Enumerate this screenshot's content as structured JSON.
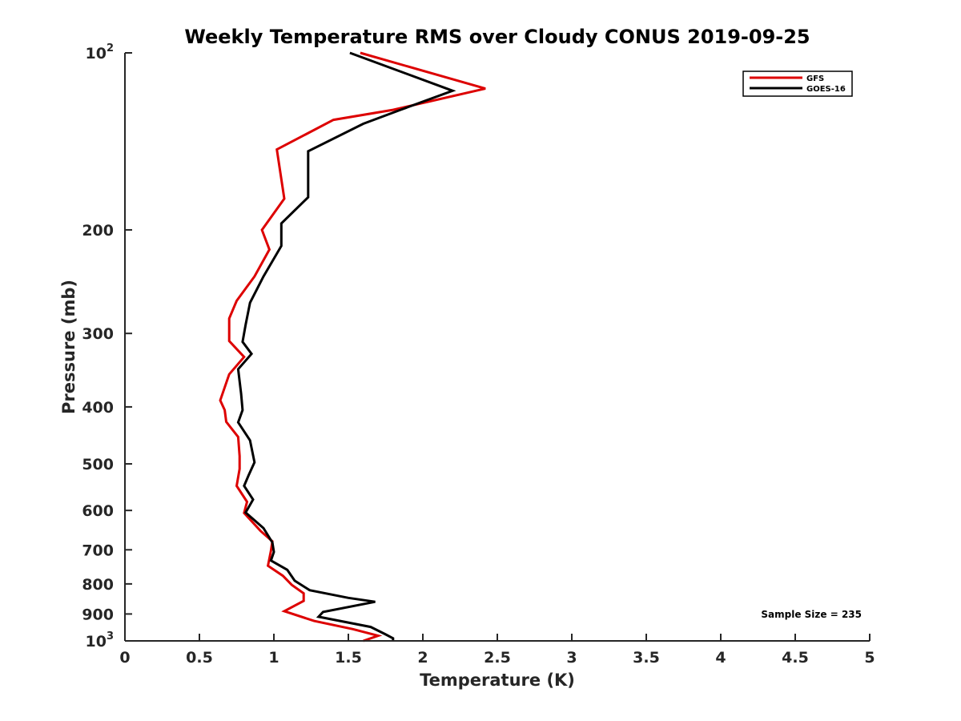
{
  "chart_data": {
    "type": "line",
    "title": "Weekly Temperature RMS over Cloudy CONUS 2019-09-25",
    "xlabel": "Temperature (K)",
    "ylabel": "Pressure (mb)",
    "xlim": [
      0,
      5
    ],
    "ylim": [
      100,
      1000
    ],
    "y_scale": "log",
    "y_reversed": true,
    "grid": false,
    "legend_position": "top-right",
    "x_ticks": [
      {
        "value": 0,
        "label": "0"
      },
      {
        "value": 0.5,
        "label": "0.5"
      },
      {
        "value": 1,
        "label": "1"
      },
      {
        "value": 1.5,
        "label": "1.5"
      },
      {
        "value": 2,
        "label": "2"
      },
      {
        "value": 2.5,
        "label": "2.5"
      },
      {
        "value": 3,
        "label": "3"
      },
      {
        "value": 3.5,
        "label": "3.5"
      },
      {
        "value": 4,
        "label": "4"
      },
      {
        "value": 4.5,
        "label": "4.5"
      },
      {
        "value": 5,
        "label": "5"
      }
    ],
    "y_ticks": [
      {
        "value": 100,
        "label": "10",
        "sup": "2"
      },
      {
        "value": 200,
        "label": "200"
      },
      {
        "value": 300,
        "label": "300"
      },
      {
        "value": 400,
        "label": "400"
      },
      {
        "value": 500,
        "label": "500"
      },
      {
        "value": 600,
        "label": "600"
      },
      {
        "value": 700,
        "label": "700"
      },
      {
        "value": 800,
        "label": "800"
      },
      {
        "value": 900,
        "label": "900"
      },
      {
        "value": 1000,
        "label": "10",
        "sup": "3"
      }
    ],
    "series": [
      {
        "name": "GFS",
        "color": "#dd0000",
        "points": [
          {
            "x": 1.58,
            "y": 100
          },
          {
            "x": 2.42,
            "y": 115
          },
          {
            "x": 1.8,
            "y": 125
          },
          {
            "x": 1.4,
            "y": 130
          },
          {
            "x": 1.02,
            "y": 146
          },
          {
            "x": 1.07,
            "y": 177
          },
          {
            "x": 0.92,
            "y": 200
          },
          {
            "x": 0.97,
            "y": 216
          },
          {
            "x": 0.87,
            "y": 240
          },
          {
            "x": 0.75,
            "y": 264
          },
          {
            "x": 0.7,
            "y": 283
          },
          {
            "x": 0.7,
            "y": 309
          },
          {
            "x": 0.8,
            "y": 329
          },
          {
            "x": 0.7,
            "y": 352
          },
          {
            "x": 0.64,
            "y": 390
          },
          {
            "x": 0.67,
            "y": 405
          },
          {
            "x": 0.68,
            "y": 424
          },
          {
            "x": 0.76,
            "y": 450
          },
          {
            "x": 0.77,
            "y": 485
          },
          {
            "x": 0.77,
            "y": 510
          },
          {
            "x": 0.75,
            "y": 545
          },
          {
            "x": 0.82,
            "y": 580
          },
          {
            "x": 0.8,
            "y": 606
          },
          {
            "x": 0.91,
            "y": 650
          },
          {
            "x": 0.99,
            "y": 677
          },
          {
            "x": 0.98,
            "y": 703
          },
          {
            "x": 0.96,
            "y": 745
          },
          {
            "x": 1.06,
            "y": 775
          },
          {
            "x": 1.12,
            "y": 803
          },
          {
            "x": 1.2,
            "y": 830
          },
          {
            "x": 1.2,
            "y": 855
          },
          {
            "x": 1.07,
            "y": 890
          },
          {
            "x": 1.27,
            "y": 925
          },
          {
            "x": 1.53,
            "y": 955
          },
          {
            "x": 1.7,
            "y": 980
          },
          {
            "x": 1.6,
            "y": 1000
          }
        ]
      },
      {
        "name": "GOES-16",
        "color": "#000000",
        "points": [
          {
            "x": 1.51,
            "y": 100
          },
          {
            "x": 2.2,
            "y": 116
          },
          {
            "x": 1.85,
            "y": 125
          },
          {
            "x": 1.6,
            "y": 132
          },
          {
            "x": 1.23,
            "y": 147
          },
          {
            "x": 1.23,
            "y": 176
          },
          {
            "x": 1.05,
            "y": 195
          },
          {
            "x": 1.05,
            "y": 213
          },
          {
            "x": 0.93,
            "y": 240
          },
          {
            "x": 0.84,
            "y": 266
          },
          {
            "x": 0.81,
            "y": 290
          },
          {
            "x": 0.79,
            "y": 310
          },
          {
            "x": 0.85,
            "y": 325
          },
          {
            "x": 0.76,
            "y": 345
          },
          {
            "x": 0.78,
            "y": 380
          },
          {
            "x": 0.79,
            "y": 405
          },
          {
            "x": 0.76,
            "y": 425
          },
          {
            "x": 0.84,
            "y": 456
          },
          {
            "x": 0.87,
            "y": 497
          },
          {
            "x": 0.83,
            "y": 523
          },
          {
            "x": 0.8,
            "y": 545
          },
          {
            "x": 0.86,
            "y": 575
          },
          {
            "x": 0.81,
            "y": 605
          },
          {
            "x": 0.93,
            "y": 643
          },
          {
            "x": 0.99,
            "y": 680
          },
          {
            "x": 1.0,
            "y": 706
          },
          {
            "x": 0.98,
            "y": 730
          },
          {
            "x": 1.09,
            "y": 757
          },
          {
            "x": 1.14,
            "y": 790
          },
          {
            "x": 1.24,
            "y": 820
          },
          {
            "x": 1.5,
            "y": 845
          },
          {
            "x": 1.68,
            "y": 858
          },
          {
            "x": 1.33,
            "y": 893
          },
          {
            "x": 1.3,
            "y": 910
          },
          {
            "x": 1.65,
            "y": 947
          },
          {
            "x": 1.75,
            "y": 975
          },
          {
            "x": 1.8,
            "y": 990
          },
          {
            "x": 1.8,
            "y": 1000
          }
        ]
      }
    ],
    "annotations": [
      {
        "text": "Sample Size = 235",
        "position": "bottom-right"
      }
    ]
  }
}
